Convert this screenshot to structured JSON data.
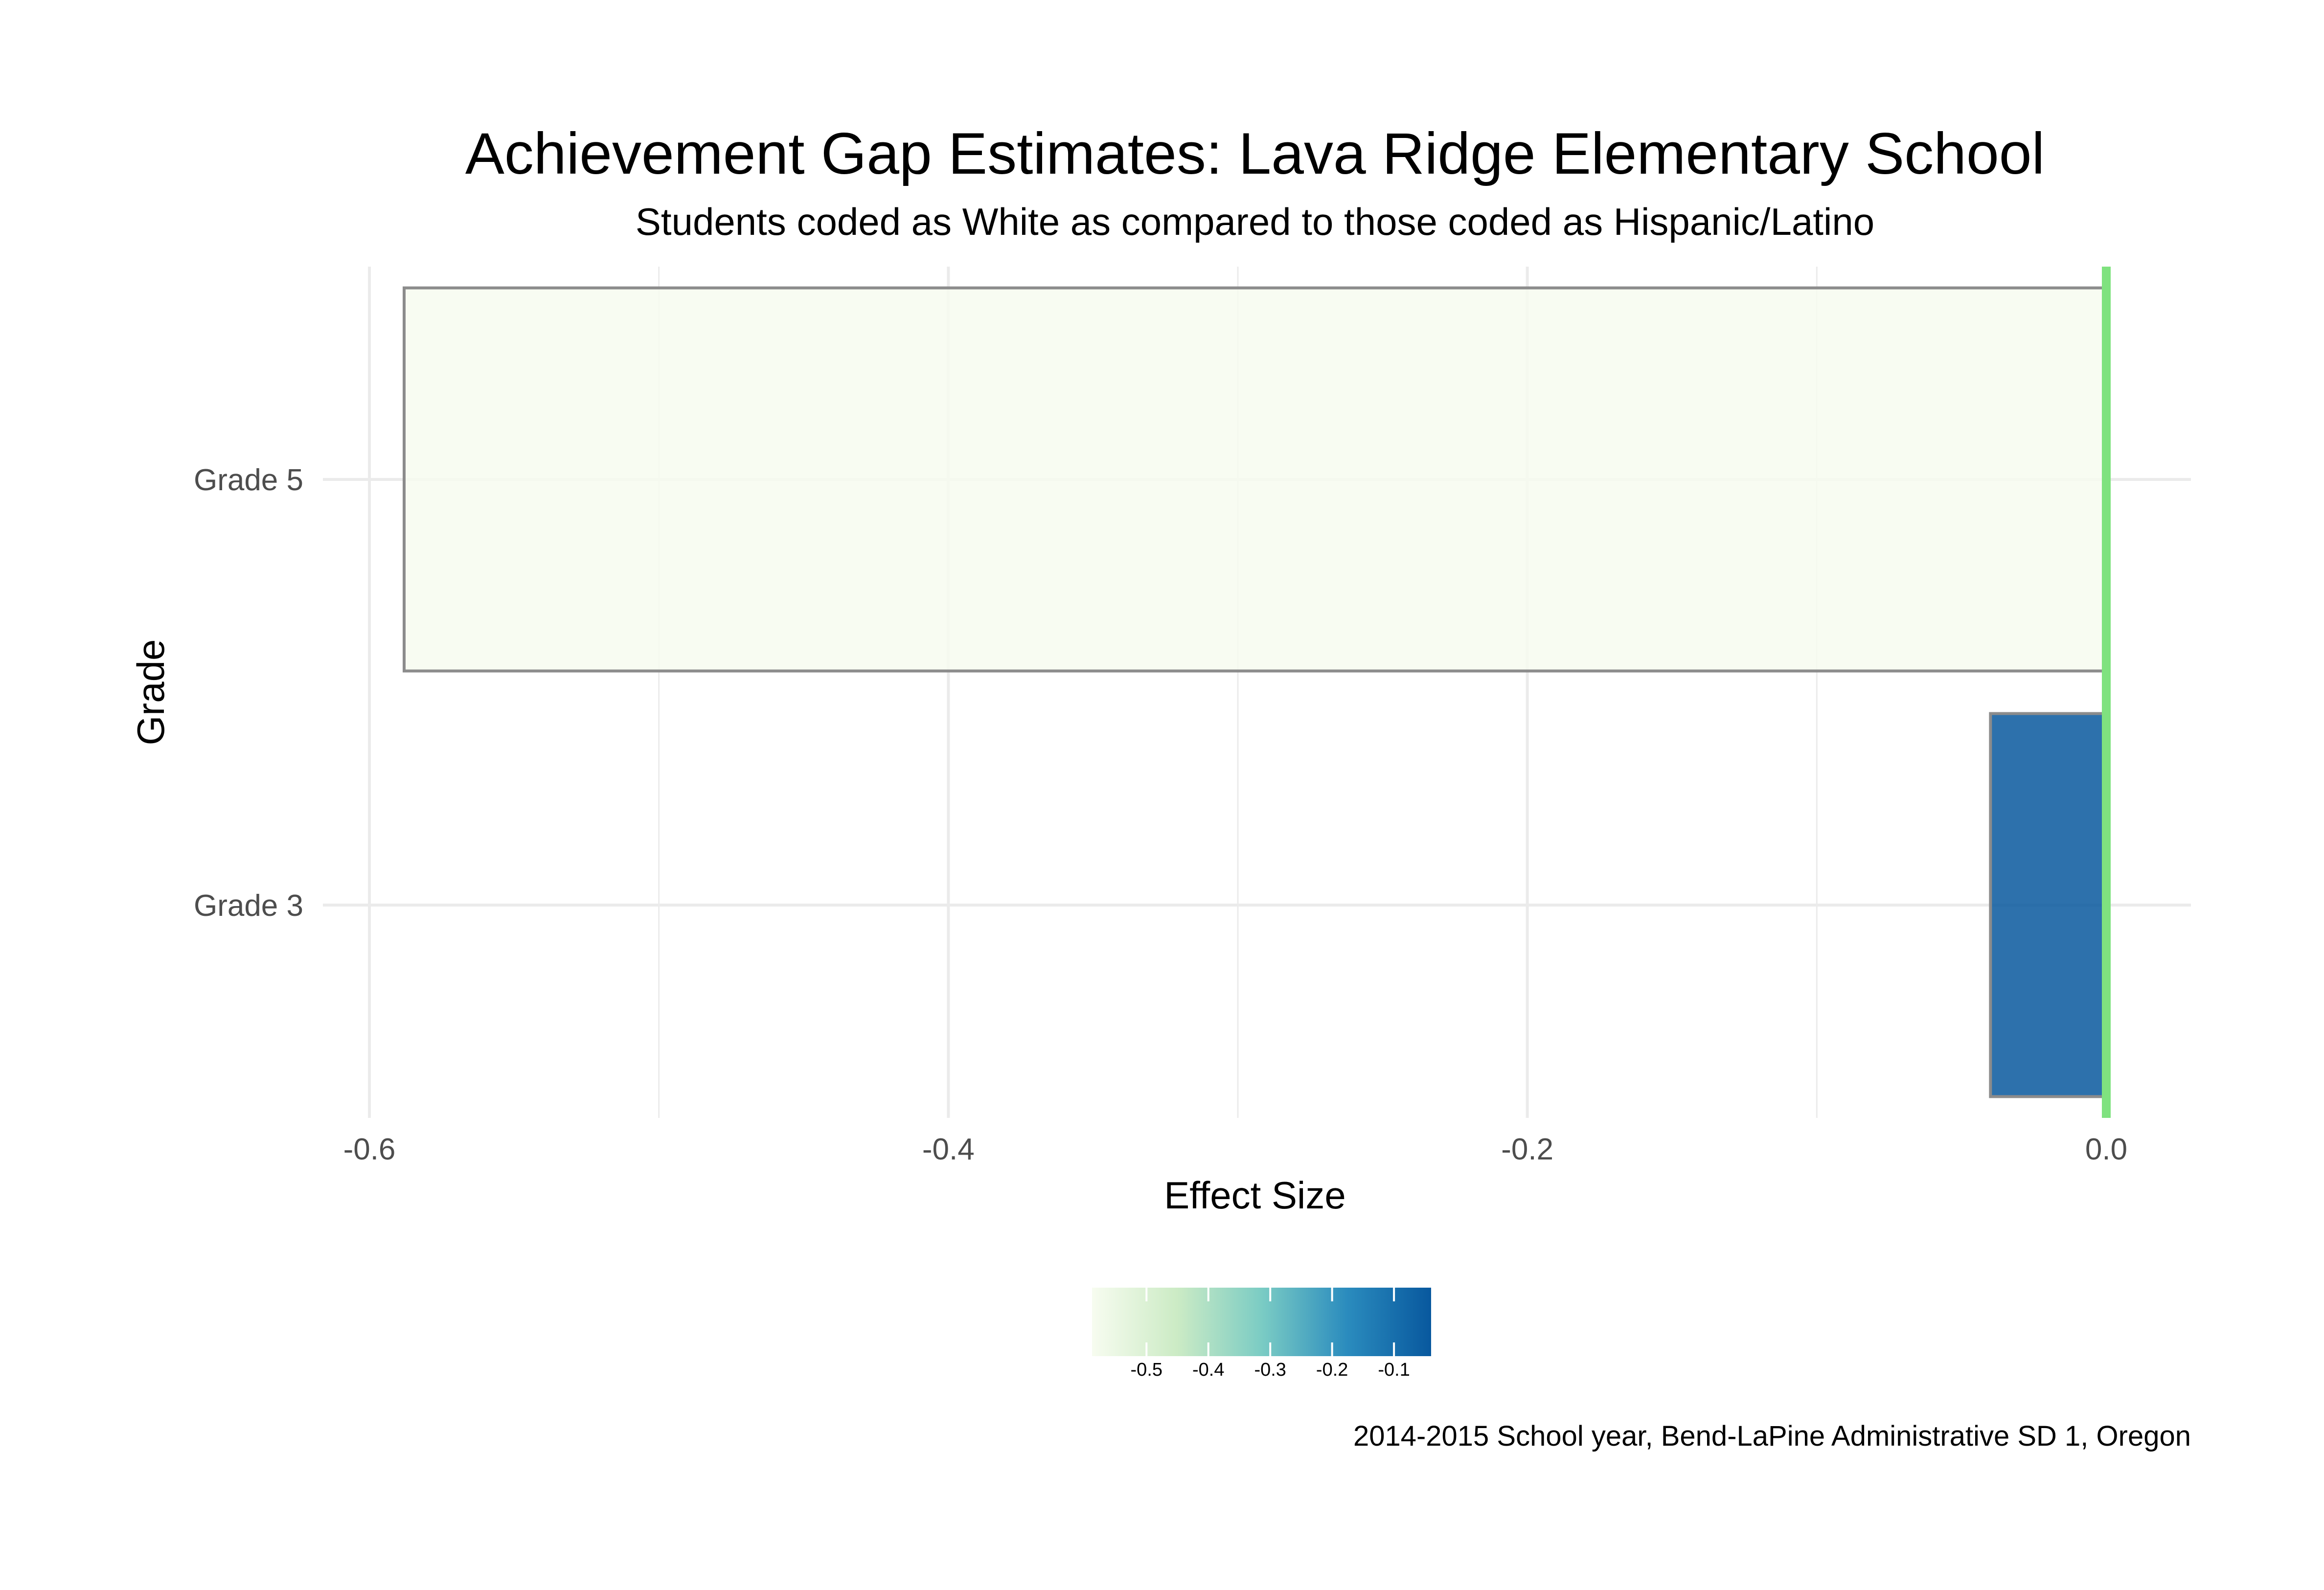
{
  "chart_data": {
    "type": "bar",
    "orientation": "horizontal",
    "title": "Achievement Gap Estimates: Lava Ridge Elementary School",
    "subtitle": "Students coded as White as compared to those coded as Hispanic/Latino",
    "xlabel": "Effect Size",
    "ylabel": "Grade",
    "categories": [
      "Grade 3",
      "Grade 5"
    ],
    "values": [
      -0.04,
      -0.588
    ],
    "xlim": [
      -0.6,
      0.0
    ],
    "x_ticks": [
      "-0.6",
      "-0.4",
      "-0.2",
      "0.0"
    ],
    "reference_line": {
      "x": 0.0,
      "color": "#7fe27f"
    },
    "grid": true,
    "bar_outline_color": "#8c8c8c",
    "colorbar": {
      "ticks": [
        "-0.5",
        "-0.4",
        "-0.3",
        "-0.2",
        "-0.1"
      ],
      "tick_values": [
        -0.5,
        -0.4,
        -0.3,
        -0.2,
        -0.1
      ],
      "range": [
        -0.588,
        -0.04
      ],
      "colors": [
        "#f7fcf0",
        "#ccebc5",
        "#7bccc4",
        "#2b8cbe",
        "#08589e"
      ]
    },
    "caption": "2014-2015 School year, Bend-LaPine Administrative SD 1, Oregon",
    "legend_position": "bottom"
  }
}
